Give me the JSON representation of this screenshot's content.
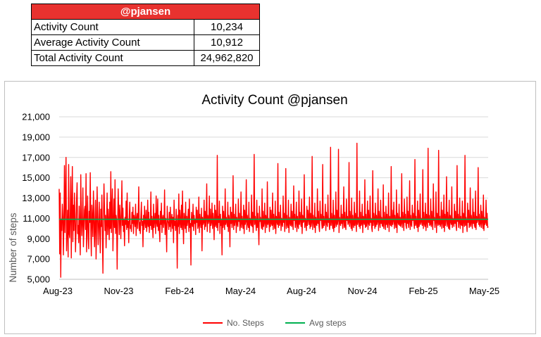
{
  "summary": {
    "user": "@pjansen",
    "rows": [
      {
        "label": "Activity Count",
        "value": "10,234"
      },
      {
        "label": "Average Activity Count",
        "value": "10,912"
      },
      {
        "label": "Total Activity Count",
        "value": "24,962,820"
      }
    ]
  },
  "chart_data": {
    "type": "line",
    "title": "Activity Count @pjansen",
    "ylabel": "Number of steps",
    "xlabel": "",
    "ylim": [
      5000,
      21000
    ],
    "yticks": [
      "5,000",
      "7,000",
      "9,000",
      "11,000",
      "13,000",
      "15,000",
      "17,000",
      "19,000",
      "21,000"
    ],
    "xticks": [
      "Aug-23",
      "Nov-23",
      "Feb-24",
      "May-24",
      "Aug-24",
      "Nov-24",
      "Feb-25",
      "May-25"
    ],
    "grid": true,
    "legend": "bottom",
    "x_start": "2023-08-01",
    "x_end": "2025-05-31",
    "colors": {
      "steps": "#ff0000",
      "avg": "#00b050"
    },
    "series": [
      {
        "name": "No. Steps",
        "values": [
          13900,
          7500,
          13500,
          5200,
          10800,
          9800,
          12400,
          11200,
          7400,
          10500,
          16200,
          9600,
          13300,
          17000,
          7800,
          9900,
          11800,
          7200,
          16300,
          9500,
          9100,
          11400,
          15100,
          7100,
          12000,
          16100,
          8700,
          12300,
          9800,
          13500,
          11400,
          7700,
          9700,
          12800,
          14500,
          9500,
          10300,
          8600,
          12200,
          9800,
          7400,
          15300,
          11000,
          9300,
          10700,
          14000,
          8200,
          10000,
          11800,
          12200,
          9900,
          15400,
          7700,
          10600,
          13200,
          9200,
          8000,
          11700,
          10600,
          15500,
          9800,
          7300,
          12300,
          10900,
          9200,
          13700,
          11100,
          8200,
          10500,
          12800,
          7000,
          9800,
          14100,
          11000,
          8400,
          10300,
          12600,
          9600,
          7600,
          11900,
          10200,
          13300,
          9400,
          5600,
          10700,
          14400,
          12100,
          9800,
          11300,
          8100,
          10500,
          13500,
          9400,
          11900,
          10600,
          8900,
          12600,
          10000,
          15600,
          9600,
          11800,
          13900,
          7800,
          10400,
          12900,
          10100,
          14800,
          9500,
          11300,
          10800,
          6000,
          10500,
          13900,
          11500,
          9400,
          12300,
          10900,
          9000,
          11400,
          14700,
          10300,
          12000,
          9700,
          10800,
          8300,
          11100,
          10400,
          12700,
          9900,
          13500,
          10100,
          10700,
          8600,
          11200,
          12600,
          10000,
          10300,
          9700,
          11600,
          10500,
          12100,
          9500,
          11300,
          10800,
          10200,
          12400,
          9300,
          10900,
          11500,
          10000,
          11200,
          14100,
          9800,
          10600,
          9500,
          11100,
          12600,
          10300,
          10700,
          8200,
          11300,
          9900,
          12200,
          10600,
          10100,
          11800,
          9700,
          10400,
          12800,
          10200,
          11600,
          9600,
          10900,
          10300,
          13600,
          9900,
          11200,
          10500,
          9100,
          12400,
          10100,
          10800,
          11500,
          9500,
          13200,
          10600,
          10200,
          12900,
          9800,
          11300,
          10000,
          8700,
          11700,
          10400,
          12500,
          9600,
          10900,
          11300,
          10100,
          10600,
          13800,
          9400,
          11000,
          10300,
          7700,
          12200,
          10800,
          10500,
          9900,
          11600,
          10200,
          12100,
          9700,
          10900,
          11400,
          10000,
          11100,
          8600,
          12800,
          10300,
          10700,
          9800,
          11900,
          10500,
          6100,
          11300,
          10200,
          13400,
          9500,
          11800,
          10600,
          10100,
          12300,
          9900,
          13700,
          10400,
          8500,
          11500,
          10800,
          10000,
          12600,
          9600,
          11200,
          10300,
          10800,
          11900,
          9700,
          12900,
          10100,
          10500,
          6400,
          11600,
          10700,
          10200,
          12400,
          9800,
          11300,
          10500,
          10900,
          9400,
          12100,
          10600,
          11800,
          10000,
          10300,
          13100,
          9600,
          11400,
          10700,
          10100,
          12000,
          7800,
          11100,
          10400,
          10600,
          12800,
          9900,
          11700,
          10200,
          10900,
          14400,
          9700,
          11300,
          10500,
          10800,
          13200,
          9600,
          11900,
          10300,
          10600,
          12500,
          10000,
          11500,
          10700,
          8900,
          12300,
          10200,
          11800,
          10400,
          10100,
          17200,
          9800,
          11200,
          10600,
          12700,
          9500,
          11400,
          10300,
          10800,
          7400,
          12200,
          10100,
          11700,
          10500,
          9900,
          13900,
          10400,
          11100,
          10700,
          10200,
          12600,
          9700,
          11300,
          10900,
          8200,
          12100,
          10500,
          11600,
          10100,
          10600,
          15200,
          9900,
          11400,
          10300,
          10800,
          12400,
          9600,
          11100,
          10500,
          10200,
          12900,
          10700,
          11500,
          9800,
          10400,
          13600,
          10100,
          11200,
          10600,
          10000,
          12300,
          9500,
          11800,
          10400,
          10700,
          14800,
          9900,
          11300,
          10500,
          10100,
          12600,
          9700,
          11000,
          10800,
          10300,
          13300,
          10200,
          11600,
          9600,
          10900,
          17300,
          10400,
          11200,
          10600,
          9800,
          12800,
          10100,
          11500,
          10300,
          8400,
          12200,
          10700,
          11100,
          10500,
          10000,
          13900,
          9900,
          11700,
          10200,
          10600,
          12500,
          9600,
          11300,
          10800,
          10100,
          14600,
          10400,
          11000,
          10700,
          9700,
          12100,
          10200,
          11800,
          10500,
          10300,
          13500,
          9900,
          11400,
          10600,
          10000,
          12700,
          9500,
          11200,
          10800,
          10400,
          16400,
          10100,
          11600,
          10300,
          10700,
          12300,
          9800,
          11000,
          10500,
          10200,
          13200,
          10600,
          11500,
          9700,
          10900,
          15900,
          10000,
          11300,
          10400,
          10100,
          12800,
          9600,
          11100,
          10700,
          10300,
          12400,
          10200,
          11700,
          10500,
          9900,
          14200,
          10800,
          11400,
          10100,
          10600,
          12600,
          9700,
          11200,
          10300,
          10000,
          13700,
          10400,
          11600,
          10800,
          10200,
          12900,
          9500,
          11300,
          10600,
          10700,
          15300,
          10100,
          11000,
          10500,
          9800,
          12200,
          10300,
          11800,
          10900,
          10400,
          13100,
          10000,
          11500,
          10200,
          10600,
          17100,
          9900,
          11300,
          10700,
          10100,
          12500,
          9600,
          11100,
          10400,
          10300,
          13900,
          10500,
          11700,
          10200,
          9700,
          12700,
          10800,
          11400,
          10600,
          10000,
          16300,
          10100,
          11200,
          10300,
          10700,
          12400,
          9800,
          11600,
          10500,
          10200,
          13300,
          10600,
          11000,
          9900,
          10400,
          18000,
          10300,
          11500,
          10700,
          10000,
          12800,
          9700,
          11300,
          10100,
          10500,
          13600,
          10200,
          11800,
          10400,
          10800,
          17800,
          9600,
          11100,
          10600,
          10300,
          12300,
          10500,
          11400,
          10000,
          10700,
          14100,
          10100,
          11600,
          10300,
          9900,
          12900,
          10800,
          11200,
          10400,
          10600,
          16500,
          10200,
          11700,
          10700,
          10000,
          13000,
          9800,
          11300,
          10500,
          10100,
          12600,
          10300,
          11500,
          10600,
          9700,
          18400,
          10400,
          11100,
          10800,
          10200,
          13700,
          10000,
          11600,
          10300,
          10500,
          12400,
          9600,
          11200,
          10700,
          10400,
          14800,
          10100,
          11400,
          10200,
          10600,
          12700,
          9900,
          11800,
          10500,
          10300,
          13200,
          10600,
          11000,
          10100,
          9700,
          15700,
          10300,
          11500,
          10800,
          10000,
          12500,
          10200,
          11300,
          10400,
          10700,
          13900,
          9800,
          11700,
          10600,
          10100,
          12800,
          10500,
          11100,
          10300,
          10200,
          14300,
          10000,
          11600,
          10700,
          9900,
          12200,
          10400,
          11400,
          10100,
          10600,
          13500,
          9700,
          11200,
          10500,
          10300,
          16100,
          10200,
          11800,
          10400,
          10800,
          12600,
          10000,
          11300,
          10600,
          10100,
          13800,
          9600,
          11500,
          10700,
          10400,
          12400,
          10300,
          11100,
          10200,
          10500,
          15400,
          10100,
          11600,
          10800,
          9800,
          12900,
          10600,
          11400,
          10300,
          10000,
          13100,
          10500,
          11700,
          10100,
          10700,
          14700,
          9900,
          11300,
          10400,
          10200,
          12300,
          10800,
          11500,
          10600,
          10000,
          16800,
          10300,
          11200,
          10500,
          10100,
          12700,
          9700,
          11800,
          10200,
          10600,
          13400,
          10400,
          11000,
          10800,
          10300,
          15800,
          10000,
          11600,
          10500,
          10200,
          12500,
          9800,
          11400,
          10700,
          10100,
          17900,
          10600,
          11300,
          10300,
          10400,
          12900,
          10200,
          11700,
          10500,
          9900,
          14400,
          10800,
          11100,
          10100,
          10600,
          13600,
          9600,
          11500,
          10700,
          10300,
          17700,
          10400,
          11200,
          10200,
          10500,
          12600,
          10000,
          11800,
          10600,
          10100,
          13300,
          9700,
          11400,
          10300,
          10800,
          15100,
          10200,
          11600,
          10500,
          10000,
          12800,
          9900,
          11300,
          10700,
          10400,
          14100,
          10100,
          11000,
          10600,
          10200,
          12400,
          10500,
          11700,
          10300,
          9800,
          16200,
          10700,
          11400,
          10100,
          10600,
          13000,
          10000,
          11200,
          10400,
          10300,
          12700,
          9600,
          11500,
          10800,
          10200,
          17200,
          10300,
          11100,
          10500,
          9700,
          12500,
          10600,
          11800,
          10100,
          10400,
          14000,
          10200,
          11300,
          10700,
          10000,
          12900,
          10500,
          11600,
          10300,
          10100,
          13700,
          9900,
          11200,
          10600,
          10800,
          16000,
          10400,
          11400,
          10200,
          10500,
          12300,
          10100,
          11700,
          10700,
          10000,
          13300,
          9800,
          11100,
          10400,
          10600,
          12800,
          10300,
          11500,
          10100,
          10200
        ]
      },
      {
        "name": "Avg steps",
        "values": [
          10912
        ]
      }
    ]
  }
}
